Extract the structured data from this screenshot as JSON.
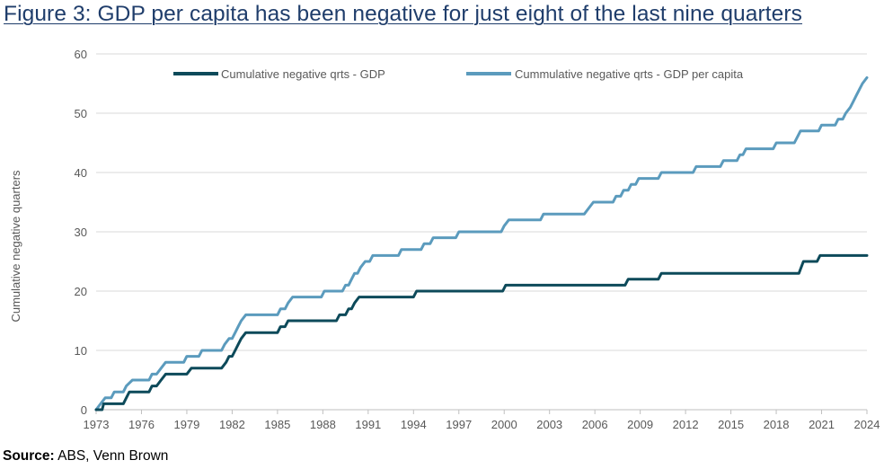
{
  "title": "Figure 3: GDP per capita has been negative for just eight of the last nine quarters",
  "source": {
    "label": "Source:",
    "text": " ABS, Venn Brown"
  },
  "chart_data": {
    "type": "line",
    "ylabel": "Cumulative negative quarters",
    "xlabel": "",
    "ylim": [
      0,
      60
    ],
    "xlim": [
      1973,
      2024
    ],
    "y_ticks": [
      0,
      10,
      20,
      30,
      40,
      50,
      60
    ],
    "x_ticks": [
      1973,
      1976,
      1979,
      1982,
      1985,
      1988,
      1991,
      1994,
      1997,
      2000,
      2003,
      2006,
      2009,
      2012,
      2015,
      2018,
      2021,
      2024
    ],
    "grid": "horizontal",
    "legend_position": "top",
    "colors": {
      "gdp": "#0d4a5a",
      "gdp_per_capita": "#5b9bbd",
      "grid": "#d9d9d9",
      "axis": "#bfbfbf"
    },
    "series": [
      {
        "name": "Cumulative negative qrts - GDP",
        "points": [
          [
            1973.0,
            0
          ],
          [
            1973.4,
            0
          ],
          [
            1973.5,
            1
          ],
          [
            1974.8,
            1
          ],
          [
            1975.0,
            2
          ],
          [
            1975.2,
            3
          ],
          [
            1976.5,
            3
          ],
          [
            1976.7,
            4
          ],
          [
            1977.0,
            4
          ],
          [
            1977.3,
            5
          ],
          [
            1977.6,
            6
          ],
          [
            1979.0,
            6
          ],
          [
            1979.3,
            7
          ],
          [
            1981.3,
            7
          ],
          [
            1981.6,
            8
          ],
          [
            1981.8,
            9
          ],
          [
            1982.0,
            9
          ],
          [
            1982.2,
            10
          ],
          [
            1982.4,
            11
          ],
          [
            1982.6,
            12
          ],
          [
            1982.9,
            13
          ],
          [
            1985.0,
            13
          ],
          [
            1985.2,
            14
          ],
          [
            1985.5,
            14
          ],
          [
            1985.7,
            15
          ],
          [
            1988.9,
            15
          ],
          [
            1989.1,
            16
          ],
          [
            1989.5,
            16
          ],
          [
            1989.7,
            17
          ],
          [
            1989.9,
            17
          ],
          [
            1990.1,
            18
          ],
          [
            1990.4,
            19
          ],
          [
            1994.0,
            19
          ],
          [
            1994.2,
            20
          ],
          [
            1999.9,
            20
          ],
          [
            2000.1,
            21
          ],
          [
            2008.0,
            21
          ],
          [
            2008.2,
            22
          ],
          [
            2010.2,
            22
          ],
          [
            2010.4,
            23
          ],
          [
            2019.5,
            23
          ],
          [
            2019.8,
            25
          ],
          [
            2020.7,
            25
          ],
          [
            2020.9,
            26
          ],
          [
            2024.0,
            26
          ]
        ]
      },
      {
        "name": "Cummulative negative qrts - GDP per capita",
        "points": [
          [
            1973.0,
            0
          ],
          [
            1973.3,
            1
          ],
          [
            1973.6,
            2
          ],
          [
            1974.0,
            2
          ],
          [
            1974.2,
            3
          ],
          [
            1974.8,
            3
          ],
          [
            1975.0,
            4
          ],
          [
            1975.4,
            5
          ],
          [
            1976.5,
            5
          ],
          [
            1976.7,
            6
          ],
          [
            1977.0,
            6
          ],
          [
            1977.3,
            7
          ],
          [
            1977.6,
            8
          ],
          [
            1978.8,
            8
          ],
          [
            1979.0,
            9
          ],
          [
            1979.8,
            9
          ],
          [
            1980.0,
            10
          ],
          [
            1981.3,
            10
          ],
          [
            1981.5,
            11
          ],
          [
            1981.8,
            12
          ],
          [
            1982.0,
            12
          ],
          [
            1982.2,
            13
          ],
          [
            1982.4,
            14
          ],
          [
            1982.6,
            15
          ],
          [
            1982.9,
            16
          ],
          [
            1985.0,
            16
          ],
          [
            1985.2,
            17
          ],
          [
            1985.5,
            17
          ],
          [
            1985.7,
            18
          ],
          [
            1986.0,
            19
          ],
          [
            1987.9,
            19
          ],
          [
            1988.1,
            20
          ],
          [
            1989.3,
            20
          ],
          [
            1989.5,
            21
          ],
          [
            1989.7,
            21
          ],
          [
            1989.9,
            22
          ],
          [
            1990.1,
            23
          ],
          [
            1990.3,
            23
          ],
          [
            1990.5,
            24
          ],
          [
            1990.8,
            25
          ],
          [
            1991.1,
            25
          ],
          [
            1991.3,
            26
          ],
          [
            1993.0,
            26
          ],
          [
            1993.2,
            27
          ],
          [
            1994.5,
            27
          ],
          [
            1994.7,
            28
          ],
          [
            1995.1,
            28
          ],
          [
            1995.3,
            29
          ],
          [
            1996.8,
            29
          ],
          [
            1997.0,
            30
          ],
          [
            1999.8,
            30
          ],
          [
            2000.0,
            31
          ],
          [
            2000.3,
            32
          ],
          [
            2002.4,
            32
          ],
          [
            2002.6,
            33
          ],
          [
            2005.3,
            33
          ],
          [
            2005.6,
            34
          ],
          [
            2005.9,
            35
          ],
          [
            2007.2,
            35
          ],
          [
            2007.4,
            36
          ],
          [
            2007.7,
            36
          ],
          [
            2007.9,
            37
          ],
          [
            2008.2,
            37
          ],
          [
            2008.4,
            38
          ],
          [
            2008.7,
            38
          ],
          [
            2008.9,
            39
          ],
          [
            2010.2,
            39
          ],
          [
            2010.4,
            40
          ],
          [
            2012.5,
            40
          ],
          [
            2012.7,
            41
          ],
          [
            2014.3,
            41
          ],
          [
            2014.5,
            42
          ],
          [
            2015.4,
            42
          ],
          [
            2015.6,
            43
          ],
          [
            2015.8,
            43
          ],
          [
            2016.0,
            44
          ],
          [
            2017.8,
            44
          ],
          [
            2018.0,
            45
          ],
          [
            2019.2,
            45
          ],
          [
            2019.4,
            46
          ],
          [
            2019.6,
            47
          ],
          [
            2020.8,
            47
          ],
          [
            2021.0,
            48
          ],
          [
            2021.9,
            48
          ],
          [
            2022.1,
            49
          ],
          [
            2022.4,
            49
          ],
          [
            2022.6,
            50
          ],
          [
            2022.9,
            51
          ],
          [
            2023.1,
            52
          ],
          [
            2023.3,
            53
          ],
          [
            2023.5,
            54
          ],
          [
            2023.7,
            55
          ],
          [
            2024.0,
            56
          ]
        ]
      }
    ]
  }
}
